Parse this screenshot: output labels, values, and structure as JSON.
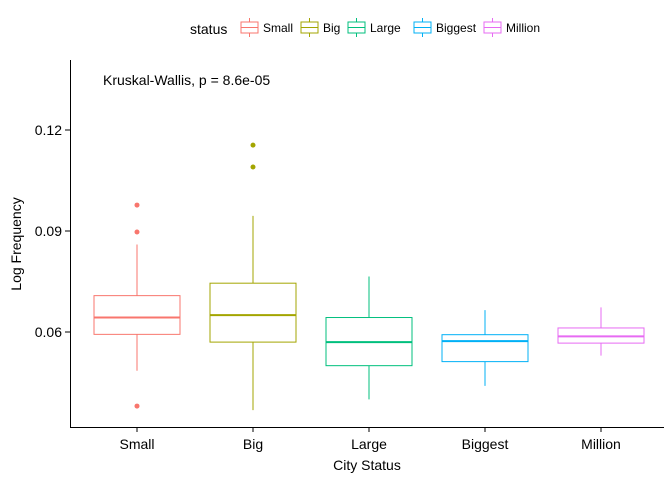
{
  "chart_data": {
    "type": "boxplot",
    "title": "",
    "xlabel": "City Status",
    "ylabel": "Log Frequency",
    "ylim": [
      0.036,
      0.14
    ],
    "y_ticks": [
      0.06,
      0.09,
      0.12
    ],
    "y_tick_labels": [
      "0.06",
      "0.09",
      "0.12"
    ],
    "categories": [
      "Small",
      "Big",
      "Large",
      "Biggest",
      "Million"
    ],
    "legend": {
      "title": "status",
      "placement": "top",
      "entries": [
        "Small",
        "Big",
        "Large",
        "Biggest",
        "Million"
      ]
    },
    "annotation": "Kruskal-Wallis, p = 8.6e-05",
    "grid": false,
    "colors": [
      "#F8766D",
      "#A3A500",
      "#00BF7D",
      "#00B0F6",
      "#E76BF3"
    ],
    "series": [
      {
        "name": "Small",
        "whisker_low": 0.0485,
        "q1": 0.0593,
        "median": 0.0643,
        "q3": 0.0708,
        "whisker_high": 0.086,
        "outliers": [
          0.0977,
          0.0897,
          0.038
        ]
      },
      {
        "name": "Big",
        "whisker_low": 0.0368,
        "q1": 0.057,
        "median": 0.065,
        "q3": 0.0745,
        "whisker_high": 0.0945,
        "outliers": [
          0.1155,
          0.109
        ]
      },
      {
        "name": "Large",
        "whisker_low": 0.04,
        "q1": 0.05,
        "median": 0.057,
        "q3": 0.0643,
        "whisker_high": 0.0765,
        "outliers": []
      },
      {
        "name": "Biggest",
        "whisker_low": 0.044,
        "q1": 0.0512,
        "median": 0.0573,
        "q3": 0.0592,
        "whisker_high": 0.0665,
        "outliers": []
      },
      {
        "name": "Million",
        "whisker_low": 0.053,
        "q1": 0.0567,
        "median": 0.0587,
        "q3": 0.0612,
        "whisker_high": 0.0673,
        "outliers": []
      }
    ]
  }
}
